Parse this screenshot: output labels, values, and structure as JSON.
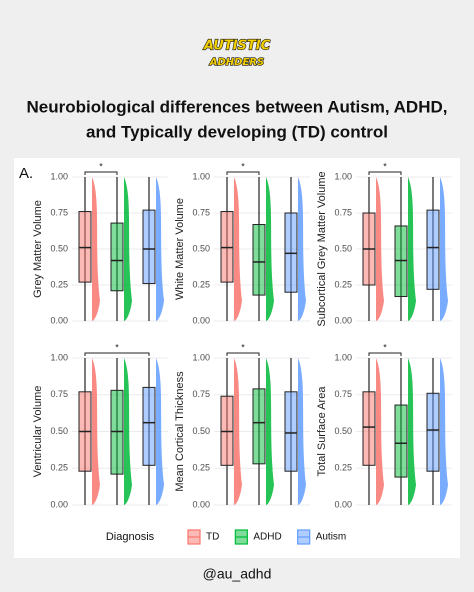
{
  "logo": {
    "line1": "AUTISTIC",
    "line2": "ADHDERS"
  },
  "title": {
    "line1": "Neurobiological differences between Autism, ADHD,",
    "line2": "and Typically developing (TD) control"
  },
  "panel_label": "A.",
  "legend_title": "Diagnosis",
  "handle": "@au_adhd",
  "chart_data": [
    {
      "type": "box",
      "y_label": "Grey Matter Volume",
      "ylim": [
        0,
        1
      ],
      "yticks": [
        {
          "value": 0,
          "label": "0.00"
        },
        {
          "value": 0.25,
          "label": "0.25"
        },
        {
          "value": 0.5,
          "label": "0.50"
        },
        {
          "value": 0.75,
          "label": "0.75"
        },
        {
          "value": 1,
          "label": "1.00"
        }
      ],
      "significance": {
        "label": "*",
        "pair": [
          "TD",
          "ADHD"
        ]
      },
      "series": [
        {
          "name": "TD",
          "color": "#f8766d",
          "whisker_low": 0,
          "q1": 0.27,
          "median": 0.51,
          "q3": 0.76,
          "whisker_high": 1
        },
        {
          "name": "ADHD",
          "color": "#00ba38",
          "whisker_low": 0,
          "q1": 0.21,
          "median": 0.42,
          "q3": 0.68,
          "whisker_high": 1
        },
        {
          "name": "Autism",
          "color": "#619cff",
          "whisker_low": 0,
          "q1": 0.26,
          "median": 0.5,
          "q3": 0.77,
          "whisker_high": 1
        }
      ]
    },
    {
      "type": "box",
      "y_label": "White Matter Volume",
      "ylim": [
        0,
        1
      ],
      "yticks": [
        {
          "value": 0,
          "label": "0.00"
        },
        {
          "value": 0.25,
          "label": "0.25"
        },
        {
          "value": 0.5,
          "label": "0.50"
        },
        {
          "value": 0.75,
          "label": "0.75"
        },
        {
          "value": 1,
          "label": "1.00"
        }
      ],
      "significance": {
        "label": "*",
        "pair": [
          "TD",
          "ADHD"
        ]
      },
      "series": [
        {
          "name": "TD",
          "color": "#f8766d",
          "whisker_low": 0,
          "q1": 0.27,
          "median": 0.51,
          "q3": 0.76,
          "whisker_high": 1
        },
        {
          "name": "ADHD",
          "color": "#00ba38",
          "whisker_low": 0,
          "q1": 0.18,
          "median": 0.41,
          "q3": 0.67,
          "whisker_high": 1
        },
        {
          "name": "Autism",
          "color": "#619cff",
          "whisker_low": 0,
          "q1": 0.2,
          "median": 0.47,
          "q3": 0.75,
          "whisker_high": 1
        }
      ]
    },
    {
      "type": "box",
      "y_label": "Subcortical Grey Matter Volume",
      "ylim": [
        0,
        1
      ],
      "yticks": [
        {
          "value": 0,
          "label": "0.00"
        },
        {
          "value": 0.25,
          "label": "0.25"
        },
        {
          "value": 0.5,
          "label": "0.50"
        },
        {
          "value": 0.75,
          "label": "0.75"
        },
        {
          "value": 1,
          "label": "1.00"
        }
      ],
      "significance": {
        "label": "*",
        "pair": [
          "TD",
          "ADHD"
        ]
      },
      "series": [
        {
          "name": "TD",
          "color": "#f8766d",
          "whisker_low": 0,
          "q1": 0.25,
          "median": 0.5,
          "q3": 0.75,
          "whisker_high": 1
        },
        {
          "name": "ADHD",
          "color": "#00ba38",
          "whisker_low": 0,
          "q1": 0.17,
          "median": 0.42,
          "q3": 0.66,
          "whisker_high": 1
        },
        {
          "name": "Autism",
          "color": "#619cff",
          "whisker_low": 0,
          "q1": 0.22,
          "median": 0.51,
          "q3": 0.77,
          "whisker_high": 1
        }
      ]
    },
    {
      "type": "box",
      "y_label": "Ventricular Volume",
      "ylim": [
        0,
        1
      ],
      "yticks": [
        {
          "value": 0,
          "label": "0.00"
        },
        {
          "value": 0.25,
          "label": "0.25"
        },
        {
          "value": 0.5,
          "label": "0.50"
        },
        {
          "value": 0.75,
          "label": "0.75"
        },
        {
          "value": 1,
          "label": "1.00"
        }
      ],
      "significance": {
        "label": "*",
        "pair": [
          "TD",
          "Autism"
        ]
      },
      "series": [
        {
          "name": "TD",
          "color": "#f8766d",
          "whisker_low": 0,
          "q1": 0.23,
          "median": 0.5,
          "q3": 0.77,
          "whisker_high": 1
        },
        {
          "name": "ADHD",
          "color": "#00ba38",
          "whisker_low": 0,
          "q1": 0.21,
          "median": 0.5,
          "q3": 0.78,
          "whisker_high": 1
        },
        {
          "name": "Autism",
          "color": "#619cff",
          "whisker_low": 0,
          "q1": 0.27,
          "median": 0.56,
          "q3": 0.8,
          "whisker_high": 1
        }
      ]
    },
    {
      "type": "box",
      "y_label": "Mean Cortical Thickness",
      "ylim": [
        0,
        1
      ],
      "yticks": [
        {
          "value": 0,
          "label": "0.00"
        },
        {
          "value": 0.25,
          "label": "0.25"
        },
        {
          "value": 0.5,
          "label": "0.50"
        },
        {
          "value": 0.75,
          "label": "0.75"
        },
        {
          "value": 1,
          "label": "1.00"
        }
      ],
      "significance": {
        "label": "*",
        "pair": [
          "TD",
          "ADHD"
        ]
      },
      "series": [
        {
          "name": "TD",
          "color": "#f8766d",
          "whisker_low": 0,
          "q1": 0.27,
          "median": 0.5,
          "q3": 0.74,
          "whisker_high": 1
        },
        {
          "name": "ADHD",
          "color": "#00ba38",
          "whisker_low": 0,
          "q1": 0.28,
          "median": 0.56,
          "q3": 0.79,
          "whisker_high": 1
        },
        {
          "name": "Autism",
          "color": "#619cff",
          "whisker_low": 0,
          "q1": 0.23,
          "median": 0.49,
          "q3": 0.77,
          "whisker_high": 1
        }
      ]
    },
    {
      "type": "box",
      "y_label": "Total Surface Area",
      "ylim": [
        0,
        1
      ],
      "yticks": [
        {
          "value": 0,
          "label": "0.00"
        },
        {
          "value": 0.25,
          "label": "0.25"
        },
        {
          "value": 0.5,
          "label": "0.50"
        },
        {
          "value": 0.75,
          "label": "0.75"
        },
        {
          "value": 1,
          "label": "1.00"
        }
      ],
      "significance": {
        "label": "*",
        "pair": [
          "TD",
          "ADHD"
        ]
      },
      "series": [
        {
          "name": "TD",
          "color": "#f8766d",
          "whisker_low": 0,
          "q1": 0.27,
          "median": 0.53,
          "q3": 0.77,
          "whisker_high": 1
        },
        {
          "name": "ADHD",
          "color": "#00ba38",
          "whisker_low": 0,
          "q1": 0.19,
          "median": 0.42,
          "q3": 0.68,
          "whisker_high": 1
        },
        {
          "name": "Autism",
          "color": "#619cff",
          "whisker_low": 0,
          "q1": 0.23,
          "median": 0.51,
          "q3": 0.76,
          "whisker_high": 1
        }
      ]
    }
  ]
}
